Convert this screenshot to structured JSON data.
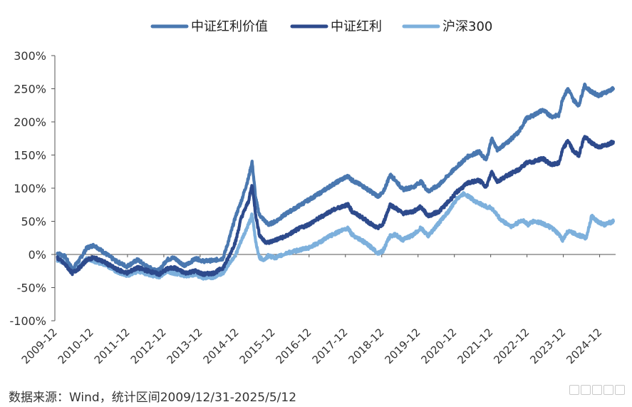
{
  "chart_data": {
    "type": "line",
    "ylim": [
      -100,
      300
    ],
    "y_ticks": [
      "300%",
      "250%",
      "200%",
      "150%",
      "100%",
      "50%",
      "0%",
      "-50%",
      "-100%"
    ],
    "y_tick_values": [
      300,
      250,
      200,
      150,
      100,
      50,
      0,
      -50,
      -100
    ],
    "x_tick_labels": [
      "2009-12",
      "2010-12",
      "2011-12",
      "2012-12",
      "2013-12",
      "2014-12",
      "2015-12",
      "2016-12",
      "2017-12",
      "2018-12",
      "2019-12",
      "2020-12",
      "2021-12",
      "2022-12",
      "2023-12",
      "2024-12"
    ],
    "x_tick_years": [
      2009.92,
      2010.92,
      2011.92,
      2012.92,
      2013.92,
      2014.92,
      2015.92,
      2016.92,
      2017.92,
      2018.92,
      2019.92,
      2020.92,
      2021.92,
      2022.92,
      2023.92,
      2024.92
    ],
    "xlim": [
      2009.92,
      2025.36
    ],
    "grid": false,
    "legend_position": "top-center",
    "series": [
      {
        "name": "中证红利价值",
        "color": "#4a78b0",
        "points": [
          [
            2009.99,
            2
          ],
          [
            2010.2,
            -3
          ],
          [
            2010.4,
            -22
          ],
          [
            2010.6,
            -8
          ],
          [
            2010.8,
            10
          ],
          [
            2011.0,
            14
          ],
          [
            2011.3,
            2
          ],
          [
            2011.6,
            -10
          ],
          [
            2011.9,
            -18
          ],
          [
            2012.2,
            -8
          ],
          [
            2012.5,
            -20
          ],
          [
            2012.8,
            -24
          ],
          [
            2013.0,
            -8
          ],
          [
            2013.2,
            -5
          ],
          [
            2013.5,
            -17
          ],
          [
            2013.8,
            -6
          ],
          [
            2014.0,
            -10
          ],
          [
            2014.3,
            -9
          ],
          [
            2014.55,
            -6
          ],
          [
            2014.7,
            20
          ],
          [
            2014.9,
            58
          ],
          [
            2015.05,
            80
          ],
          [
            2015.25,
            115
          ],
          [
            2015.35,
            140
          ],
          [
            2015.45,
            85
          ],
          [
            2015.55,
            60
          ],
          [
            2015.68,
            52
          ],
          [
            2015.8,
            45
          ],
          [
            2016.0,
            50
          ],
          [
            2016.3,
            62
          ],
          [
            2016.6,
            72
          ],
          [
            2016.9,
            82
          ],
          [
            2017.2,
            92
          ],
          [
            2017.5,
            103
          ],
          [
            2017.8,
            113
          ],
          [
            2018.0,
            118
          ],
          [
            2018.1,
            112
          ],
          [
            2018.4,
            103
          ],
          [
            2018.7,
            92
          ],
          [
            2018.8,
            88
          ],
          [
            2018.95,
            92
          ],
          [
            2019.15,
            120
          ],
          [
            2019.3,
            112
          ],
          [
            2019.5,
            98
          ],
          [
            2019.8,
            102
          ],
          [
            2020.0,
            110
          ],
          [
            2020.2,
            95
          ],
          [
            2020.5,
            105
          ],
          [
            2020.8,
            122
          ],
          [
            2021.0,
            133
          ],
          [
            2021.3,
            148
          ],
          [
            2021.6,
            155
          ],
          [
            2021.8,
            142
          ],
          [
            2021.95,
            175
          ],
          [
            2022.1,
            158
          ],
          [
            2022.4,
            170
          ],
          [
            2022.7,
            185
          ],
          [
            2022.9,
            205
          ],
          [
            2023.1,
            210
          ],
          [
            2023.35,
            218
          ],
          [
            2023.6,
            208
          ],
          [
            2023.8,
            210
          ],
          [
            2023.9,
            235
          ],
          [
            2024.05,
            250
          ],
          [
            2024.2,
            233
          ],
          [
            2024.35,
            225
          ],
          [
            2024.5,
            255
          ],
          [
            2024.7,
            245
          ],
          [
            2024.9,
            240
          ],
          [
            2025.1,
            245
          ],
          [
            2025.3,
            250
          ]
        ]
      },
      {
        "name": "中证红利",
        "color": "#2d4a8c",
        "points": [
          [
            2009.99,
            -5
          ],
          [
            2010.2,
            -15
          ],
          [
            2010.4,
            -28
          ],
          [
            2010.6,
            -20
          ],
          [
            2010.8,
            -8
          ],
          [
            2011.0,
            -5
          ],
          [
            2011.3,
            -12
          ],
          [
            2011.6,
            -22
          ],
          [
            2011.9,
            -28
          ],
          [
            2012.2,
            -20
          ],
          [
            2012.5,
            -25
          ],
          [
            2012.8,
            -30
          ],
          [
            2013.0,
            -22
          ],
          [
            2013.2,
            -20
          ],
          [
            2013.5,
            -28
          ],
          [
            2013.8,
            -25
          ],
          [
            2014.0,
            -30
          ],
          [
            2014.3,
            -28
          ],
          [
            2014.55,
            -20
          ],
          [
            2014.7,
            -5
          ],
          [
            2014.9,
            20
          ],
          [
            2015.05,
            55
          ],
          [
            2015.25,
            80
          ],
          [
            2015.35,
            105
          ],
          [
            2015.45,
            60
          ],
          [
            2015.55,
            30
          ],
          [
            2015.68,
            20
          ],
          [
            2015.8,
            18
          ],
          [
            2016.0,
            22
          ],
          [
            2016.3,
            28
          ],
          [
            2016.6,
            38
          ],
          [
            2016.9,
            45
          ],
          [
            2017.2,
            55
          ],
          [
            2017.5,
            65
          ],
          [
            2017.8,
            72
          ],
          [
            2018.0,
            75
          ],
          [
            2018.1,
            65
          ],
          [
            2018.4,
            55
          ],
          [
            2018.7,
            43
          ],
          [
            2018.8,
            40
          ],
          [
            2018.95,
            45
          ],
          [
            2019.15,
            75
          ],
          [
            2019.3,
            70
          ],
          [
            2019.5,
            62
          ],
          [
            2019.8,
            65
          ],
          [
            2020.0,
            72
          ],
          [
            2020.2,
            58
          ],
          [
            2020.5,
            65
          ],
          [
            2020.8,
            82
          ],
          [
            2021.0,
            95
          ],
          [
            2021.3,
            108
          ],
          [
            2021.6,
            112
          ],
          [
            2021.8,
            102
          ],
          [
            2021.95,
            125
          ],
          [
            2022.1,
            110
          ],
          [
            2022.4,
            120
          ],
          [
            2022.7,
            128
          ],
          [
            2022.9,
            138
          ],
          [
            2023.1,
            140
          ],
          [
            2023.35,
            145
          ],
          [
            2023.6,
            135
          ],
          [
            2023.8,
            138
          ],
          [
            2023.9,
            158
          ],
          [
            2024.05,
            172
          ],
          [
            2024.2,
            155
          ],
          [
            2024.35,
            150
          ],
          [
            2024.5,
            178
          ],
          [
            2024.7,
            168
          ],
          [
            2024.9,
            162
          ],
          [
            2025.1,
            165
          ],
          [
            2025.3,
            170
          ]
        ]
      },
      {
        "name": "沪深300",
        "color": "#7db0dc",
        "points": [
          [
            2009.99,
            -8
          ],
          [
            2010.2,
            -12
          ],
          [
            2010.4,
            -26
          ],
          [
            2010.6,
            -18
          ],
          [
            2010.8,
            -6
          ],
          [
            2011.0,
            -10
          ],
          [
            2011.3,
            -15
          ],
          [
            2011.6,
            -25
          ],
          [
            2011.9,
            -32
          ],
          [
            2012.2,
            -25
          ],
          [
            2012.5,
            -30
          ],
          [
            2012.8,
            -34
          ],
          [
            2013.0,
            -25
          ],
          [
            2013.2,
            -28
          ],
          [
            2013.5,
            -32
          ],
          [
            2013.8,
            -30
          ],
          [
            2014.0,
            -35
          ],
          [
            2014.3,
            -34
          ],
          [
            2014.55,
            -28
          ],
          [
            2014.7,
            -15
          ],
          [
            2014.9,
            0
          ],
          [
            2015.05,
            20
          ],
          [
            2015.25,
            45
          ],
          [
            2015.35,
            60
          ],
          [
            2015.45,
            20
          ],
          [
            2015.55,
            -5
          ],
          [
            2015.68,
            -8
          ],
          [
            2015.8,
            -2
          ],
          [
            2016.0,
            -5
          ],
          [
            2016.3,
            2
          ],
          [
            2016.6,
            6
          ],
          [
            2016.9,
            10
          ],
          [
            2017.2,
            18
          ],
          [
            2017.5,
            28
          ],
          [
            2017.8,
            36
          ],
          [
            2018.0,
            40
          ],
          [
            2018.1,
            30
          ],
          [
            2018.4,
            20
          ],
          [
            2018.7,
            8
          ],
          [
            2018.8,
            2
          ],
          [
            2018.95,
            5
          ],
          [
            2019.15,
            28
          ],
          [
            2019.3,
            30
          ],
          [
            2019.5,
            22
          ],
          [
            2019.8,
            30
          ],
          [
            2020.0,
            40
          ],
          [
            2020.2,
            28
          ],
          [
            2020.5,
            48
          ],
          [
            2020.8,
            68
          ],
          [
            2021.0,
            85
          ],
          [
            2021.2,
            92
          ],
          [
            2021.5,
            80
          ],
          [
            2021.8,
            72
          ],
          [
            2021.95,
            70
          ],
          [
            2022.2,
            52
          ],
          [
            2022.5,
            42
          ],
          [
            2022.8,
            52
          ],
          [
            2022.95,
            45
          ],
          [
            2023.1,
            50
          ],
          [
            2023.3,
            48
          ],
          [
            2023.6,
            40
          ],
          [
            2023.8,
            30
          ],
          [
            2023.9,
            22
          ],
          [
            2024.05,
            35
          ],
          [
            2024.3,
            30
          ],
          [
            2024.55,
            25
          ],
          [
            2024.7,
            58
          ],
          [
            2024.85,
            50
          ],
          [
            2025.05,
            45
          ],
          [
            2025.3,
            50
          ]
        ]
      }
    ]
  },
  "source_note": "数据来源：Wind，统计区间2009/12/31-2025/5/12"
}
